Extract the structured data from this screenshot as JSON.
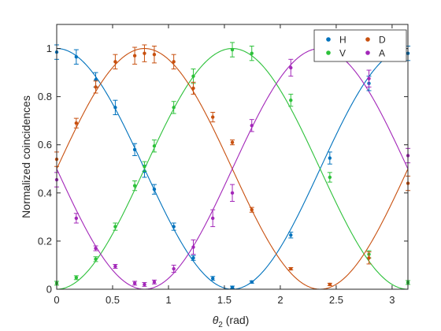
{
  "chart_data": {
    "type": "scatter",
    "xlabel_symbol": "θ",
    "xlabel_subscript": "2",
    "xlabel_unit": " (rad)",
    "ylabel": "Normalized coincidences",
    "xlim": [
      0,
      3.1416
    ],
    "ylim": [
      0,
      1.1
    ],
    "x_ticks": [
      0,
      0.5,
      1,
      1.5,
      2,
      2.5,
      3
    ],
    "x_tick_labels": [
      "0",
      "0.5",
      "1",
      "1.5",
      "2",
      "2.5",
      "3"
    ],
    "y_ticks": [
      0,
      0.2,
      0.4,
      0.6,
      0.8,
      1
    ],
    "y_tick_labels": [
      "0",
      "0.2",
      "0.4",
      "0.6",
      "0.8",
      "1"
    ],
    "grid": false,
    "legend_placement": "top-right",
    "fit_model": "cos^2(theta - phase)",
    "series": [
      {
        "name": "H",
        "color": "#0072BD",
        "fit_phase": 0,
        "points": [
          {
            "x": 0.0,
            "y": 0.985,
            "err": 0.03
          },
          {
            "x": 0.175,
            "y": 0.965,
            "err": 0.03
          },
          {
            "x": 0.349,
            "y": 0.87,
            "err": 0.03
          },
          {
            "x": 0.524,
            "y": 0.755,
            "err": 0.03
          },
          {
            "x": 0.698,
            "y": 0.58,
            "err": 0.025
          },
          {
            "x": 0.785,
            "y": 0.49,
            "err": 0.025
          },
          {
            "x": 0.873,
            "y": 0.415,
            "err": 0.02
          },
          {
            "x": 1.047,
            "y": 0.26,
            "err": 0.015
          },
          {
            "x": 1.222,
            "y": 0.13,
            "err": 0.01
          },
          {
            "x": 1.396,
            "y": 0.045,
            "err": 0.008
          },
          {
            "x": 1.571,
            "y": 0.008,
            "err": 0.005
          },
          {
            "x": 1.745,
            "y": 0.03,
            "err": 0.005
          },
          {
            "x": 2.094,
            "y": 0.225,
            "err": 0.012
          },
          {
            "x": 2.443,
            "y": 0.545,
            "err": 0.025
          },
          {
            "x": 2.793,
            "y": 0.855,
            "err": 0.03
          },
          {
            "x": 3.142,
            "y": 0.98,
            "err": 0.03
          }
        ]
      },
      {
        "name": "V",
        "color": "#2DC13A",
        "fit_phase": 1.5708,
        "points": [
          {
            "x": 0.0,
            "y": 0.025,
            "err": 0.008
          },
          {
            "x": 0.175,
            "y": 0.048,
            "err": 0.008
          },
          {
            "x": 0.349,
            "y": 0.125,
            "err": 0.01
          },
          {
            "x": 0.524,
            "y": 0.26,
            "err": 0.015
          },
          {
            "x": 0.698,
            "y": 0.43,
            "err": 0.02
          },
          {
            "x": 0.785,
            "y": 0.51,
            "err": 0.02
          },
          {
            "x": 0.873,
            "y": 0.595,
            "err": 0.025
          },
          {
            "x": 1.047,
            "y": 0.755,
            "err": 0.025
          },
          {
            "x": 1.222,
            "y": 0.885,
            "err": 0.03
          },
          {
            "x": 1.571,
            "y": 0.995,
            "err": 0.03
          },
          {
            "x": 1.745,
            "y": 0.98,
            "err": 0.03
          },
          {
            "x": 2.094,
            "y": 0.785,
            "err": 0.025
          },
          {
            "x": 2.443,
            "y": 0.465,
            "err": 0.02
          },
          {
            "x": 2.793,
            "y": 0.145,
            "err": 0.015
          },
          {
            "x": 3.142,
            "y": 0.028,
            "err": 0.008
          }
        ]
      },
      {
        "name": "D",
        "color": "#C8500F",
        "fit_phase": 0.7854,
        "points": [
          {
            "x": 0.0,
            "y": 0.54,
            "err": 0.03
          },
          {
            "x": 0.175,
            "y": 0.69,
            "err": 0.02
          },
          {
            "x": 0.349,
            "y": 0.84,
            "err": 0.025
          },
          {
            "x": 0.524,
            "y": 0.945,
            "err": 0.03
          },
          {
            "x": 0.698,
            "y": 0.97,
            "err": 0.035
          },
          {
            "x": 0.785,
            "y": 0.98,
            "err": 0.035
          },
          {
            "x": 0.873,
            "y": 0.975,
            "err": 0.035
          },
          {
            "x": 1.047,
            "y": 0.945,
            "err": 0.03
          },
          {
            "x": 1.222,
            "y": 0.835,
            "err": 0.025
          },
          {
            "x": 1.396,
            "y": 0.715,
            "err": 0.02
          },
          {
            "x": 1.571,
            "y": 0.61,
            "err": 0.01
          },
          {
            "x": 1.745,
            "y": 0.33,
            "err": 0.01
          },
          {
            "x": 2.094,
            "y": 0.085,
            "err": 0.005
          },
          {
            "x": 2.443,
            "y": 0.02,
            "err": 0.005
          },
          {
            "x": 2.793,
            "y": 0.13,
            "err": 0.025
          },
          {
            "x": 3.142,
            "y": 0.44,
            "err": 0.03
          }
        ]
      },
      {
        "name": "A",
        "color": "#A327B9",
        "fit_phase": 2.3562,
        "points": [
          {
            "x": 0.0,
            "y": 0.455,
            "err": 0.03
          },
          {
            "x": 0.175,
            "y": 0.295,
            "err": 0.02
          },
          {
            "x": 0.349,
            "y": 0.17,
            "err": 0.01
          },
          {
            "x": 0.524,
            "y": 0.095,
            "err": 0.008
          },
          {
            "x": 0.698,
            "y": 0.025,
            "err": 0.008
          },
          {
            "x": 0.785,
            "y": 0.02,
            "err": 0.008
          },
          {
            "x": 0.873,
            "y": 0.03,
            "err": 0.008
          },
          {
            "x": 1.047,
            "y": 0.085,
            "err": 0.015
          },
          {
            "x": 1.222,
            "y": 0.175,
            "err": 0.03
          },
          {
            "x": 1.396,
            "y": 0.295,
            "err": 0.035
          },
          {
            "x": 1.571,
            "y": 0.4,
            "err": 0.035
          },
          {
            "x": 1.745,
            "y": 0.68,
            "err": 0.025
          },
          {
            "x": 2.094,
            "y": 0.92,
            "err": 0.035
          },
          {
            "x": 2.793,
            "y": 0.875,
            "err": 0.035
          },
          {
            "x": 3.142,
            "y": 0.555,
            "err": 0.03
          }
        ]
      }
    ]
  }
}
